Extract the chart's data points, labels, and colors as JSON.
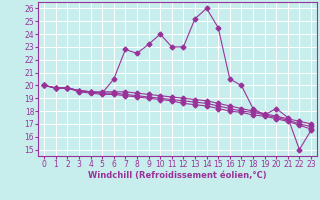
{
  "xlabel": "Windchill (Refroidissement éolien,°C)",
  "xlim": [
    -0.5,
    23.5
  ],
  "ylim": [
    14.5,
    26.5
  ],
  "yticks": [
    15,
    16,
    17,
    18,
    19,
    20,
    21,
    22,
    23,
    24,
    25,
    26
  ],
  "xticks": [
    0,
    1,
    2,
    3,
    4,
    5,
    6,
    7,
    8,
    9,
    10,
    11,
    12,
    13,
    14,
    15,
    16,
    17,
    18,
    19,
    20,
    21,
    22,
    23
  ],
  "bg_color": "#c8eded",
  "grid_color": "#ffffff",
  "line_color": "#993399",
  "lines": [
    {
      "x": [
        0,
        1,
        2,
        3,
        4,
        5,
        6,
        7,
        8,
        9,
        10,
        11,
        12,
        13,
        14,
        15,
        16,
        17,
        18,
        19,
        20,
        21,
        22,
        23
      ],
      "y": [
        20.0,
        19.8,
        19.8,
        19.6,
        19.5,
        19.4,
        20.5,
        22.8,
        22.5,
        23.2,
        24.0,
        23.0,
        23.0,
        25.2,
        26.0,
        24.5,
        20.5,
        20.0,
        18.2,
        17.7,
        18.2,
        17.5,
        15.0,
        16.5
      ]
    },
    {
      "x": [
        0,
        1,
        2,
        3,
        4,
        5,
        6,
        7,
        8,
        9,
        10,
        11,
        12,
        13,
        14,
        15,
        16,
        17,
        18,
        19,
        20,
        21,
        22,
        23
      ],
      "y": [
        20.0,
        19.8,
        19.8,
        19.6,
        19.5,
        19.5,
        19.5,
        19.5,
        19.4,
        19.3,
        19.2,
        19.1,
        19.0,
        18.9,
        18.8,
        18.6,
        18.4,
        18.2,
        18.0,
        17.8,
        17.6,
        17.4,
        17.2,
        17.0
      ]
    },
    {
      "x": [
        0,
        1,
        2,
        3,
        4,
        5,
        6,
        7,
        8,
        9,
        10,
        11,
        12,
        13,
        14,
        15,
        16,
        17,
        18,
        19,
        20,
        21,
        22,
        23
      ],
      "y": [
        20.0,
        19.8,
        19.8,
        19.6,
        19.5,
        19.4,
        19.4,
        19.3,
        19.2,
        19.1,
        19.0,
        18.9,
        18.8,
        18.7,
        18.6,
        18.4,
        18.2,
        18.0,
        17.9,
        17.7,
        17.5,
        17.3,
        17.0,
        16.8
      ]
    },
    {
      "x": [
        0,
        1,
        2,
        3,
        4,
        5,
        6,
        7,
        8,
        9,
        10,
        11,
        12,
        13,
        14,
        15,
        16,
        17,
        18,
        19,
        20,
        21,
        22,
        23
      ],
      "y": [
        20.0,
        19.8,
        19.8,
        19.5,
        19.4,
        19.3,
        19.3,
        19.2,
        19.1,
        19.0,
        18.9,
        18.8,
        18.6,
        18.5,
        18.4,
        18.2,
        18.0,
        17.9,
        17.7,
        17.6,
        17.4,
        17.2,
        16.9,
        16.6
      ]
    }
  ],
  "tick_fontsize": 5.5,
  "label_fontsize": 6.0
}
